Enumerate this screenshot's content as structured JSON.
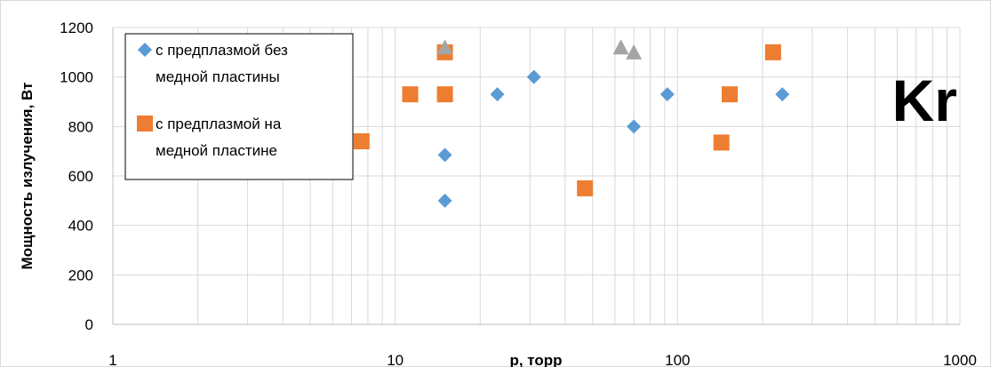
{
  "chart_data": {
    "type": "scatter",
    "xscale": "log",
    "xlim": [
      1,
      1000
    ],
    "ylim": [
      0,
      1200
    ],
    "xlabel": "p, торр",
    "ylabel": "Мощность излучения, Вт",
    "x_ticks": [
      "1",
      "10",
      "100",
      "1000"
    ],
    "y_ticks": [
      "0",
      "200",
      "400",
      "600",
      "800",
      "1000",
      "1200"
    ],
    "grid": true,
    "legend_position": "top-left",
    "annotation": "Kr",
    "series": [
      {
        "name_lines": [
          "с предплазмой без",
          "медной пластины"
        ],
        "marker": "diamond",
        "color": "#5b9bd5",
        "points": [
          [
            15,
            500
          ],
          [
            15,
            685
          ],
          [
            23,
            930
          ],
          [
            31,
            1000
          ],
          [
            70,
            800
          ],
          [
            92,
            930
          ],
          [
            235,
            930
          ]
        ]
      },
      {
        "name_lines": [
          "с предплазмой на",
          "медной пластине"
        ],
        "marker": "square",
        "color": "#ed7d31",
        "points": [
          [
            7.6,
            740
          ],
          [
            11.3,
            930
          ],
          [
            15,
            1100
          ],
          [
            15,
            930
          ],
          [
            47,
            550
          ],
          [
            143,
            735
          ],
          [
            153,
            930
          ],
          [
            218,
            1100
          ]
        ]
      },
      {
        "marker": "triangle",
        "color": "#a5a5a5",
        "points": [
          [
            15,
            1120
          ],
          [
            63,
            1120
          ],
          [
            70,
            1100
          ]
        ]
      }
    ]
  }
}
